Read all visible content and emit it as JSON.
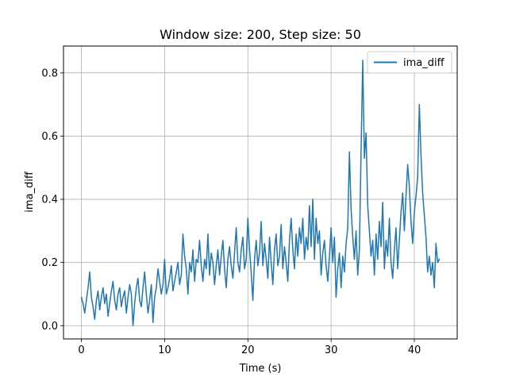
{
  "chart_data": {
    "type": "line",
    "title": "Window size: 200, Step size: 50",
    "xlabel": "Time (s)",
    "ylabel": "ima_diff",
    "xlim": [
      -2.15,
      45.15
    ],
    "ylim": [
      -0.042,
      0.885
    ],
    "xticks": [
      0,
      10,
      20,
      30,
      40
    ],
    "xtick_labels": [
      "0",
      "10",
      "20",
      "30",
      "40"
    ],
    "yticks": [
      0.0,
      0.2,
      0.4,
      0.6,
      0.8
    ],
    "ytick_labels": [
      "0.0",
      "0.2",
      "0.4",
      "0.6",
      "0.8"
    ],
    "grid": true,
    "legend_position": "upper right",
    "series": [
      {
        "name": "ima_diff",
        "color": "#1f77b4",
        "points": [
          [
            0.0,
            0.09
          ],
          [
            0.2,
            0.07
          ],
          [
            0.4,
            0.04
          ],
          [
            0.6,
            0.08
          ],
          [
            0.8,
            0.12
          ],
          [
            1.0,
            0.17
          ],
          [
            1.2,
            0.09
          ],
          [
            1.4,
            0.06
          ],
          [
            1.6,
            0.02
          ],
          [
            1.8,
            0.08
          ],
          [
            2.0,
            0.11
          ],
          [
            2.2,
            0.05
          ],
          [
            2.4,
            0.09
          ],
          [
            2.6,
            0.12
          ],
          [
            2.8,
            0.07
          ],
          [
            3.0,
            0.1
          ],
          [
            3.2,
            0.03
          ],
          [
            3.4,
            0.07
          ],
          [
            3.6,
            0.11
          ],
          [
            3.8,
            0.14
          ],
          [
            4.0,
            0.08
          ],
          [
            4.2,
            0.05
          ],
          [
            4.4,
            0.1
          ],
          [
            4.6,
            0.12
          ],
          [
            4.8,
            0.06
          ],
          [
            5.0,
            0.09
          ],
          [
            5.2,
            0.11
          ],
          [
            5.4,
            0.04
          ],
          [
            5.6,
            0.09
          ],
          [
            5.8,
            0.13
          ],
          [
            6.0,
            0.1
          ],
          [
            6.2,
            0.0
          ],
          [
            6.4,
            0.07
          ],
          [
            6.6,
            0.12
          ],
          [
            6.8,
            0.15
          ],
          [
            7.0,
            0.08
          ],
          [
            7.2,
            0.06
          ],
          [
            7.4,
            0.12
          ],
          [
            7.6,
            0.17
          ],
          [
            7.8,
            0.1
          ],
          [
            8.0,
            0.04
          ],
          [
            8.2,
            0.08
          ],
          [
            8.4,
            0.13
          ],
          [
            8.6,
            0.01
          ],
          [
            8.8,
            0.09
          ],
          [
            9.0,
            0.12
          ],
          [
            9.2,
            0.18
          ],
          [
            9.4,
            0.14
          ],
          [
            9.6,
            0.1
          ],
          [
            9.8,
            0.13
          ],
          [
            10.0,
            0.21
          ],
          [
            10.2,
            0.1
          ],
          [
            10.4,
            0.12
          ],
          [
            10.6,
            0.15
          ],
          [
            10.8,
            0.19
          ],
          [
            11.0,
            0.11
          ],
          [
            11.2,
            0.14
          ],
          [
            11.4,
            0.17
          ],
          [
            11.6,
            0.2
          ],
          [
            11.8,
            0.13
          ],
          [
            12.0,
            0.16
          ],
          [
            12.2,
            0.29
          ],
          [
            12.4,
            0.22
          ],
          [
            12.6,
            0.18
          ],
          [
            12.8,
            0.1
          ],
          [
            13.0,
            0.2
          ],
          [
            13.2,
            0.17
          ],
          [
            13.4,
            0.24
          ],
          [
            13.6,
            0.14
          ],
          [
            13.8,
            0.21
          ],
          [
            14.0,
            0.2
          ],
          [
            14.2,
            0.27
          ],
          [
            14.4,
            0.19
          ],
          [
            14.6,
            0.14
          ],
          [
            14.8,
            0.21
          ],
          [
            15.0,
            0.18
          ],
          [
            15.2,
            0.29
          ],
          [
            15.4,
            0.16
          ],
          [
            15.6,
            0.23
          ],
          [
            15.8,
            0.2
          ],
          [
            16.0,
            0.13
          ],
          [
            16.2,
            0.19
          ],
          [
            16.4,
            0.24
          ],
          [
            16.6,
            0.16
          ],
          [
            16.8,
            0.22
          ],
          [
            17.0,
            0.27
          ],
          [
            17.2,
            0.18
          ],
          [
            17.4,
            0.12
          ],
          [
            17.6,
            0.21
          ],
          [
            17.8,
            0.25
          ],
          [
            18.0,
            0.19
          ],
          [
            18.2,
            0.15
          ],
          [
            18.4,
            0.23
          ],
          [
            18.6,
            0.31
          ],
          [
            18.8,
            0.2
          ],
          [
            19.0,
            0.17
          ],
          [
            19.2,
            0.24
          ],
          [
            19.4,
            0.28
          ],
          [
            19.6,
            0.18
          ],
          [
            19.8,
            0.21
          ],
          [
            20.0,
            0.34
          ],
          [
            20.2,
            0.24
          ],
          [
            20.4,
            0.17
          ],
          [
            20.6,
            0.08
          ],
          [
            20.8,
            0.21
          ],
          [
            21.0,
            0.27
          ],
          [
            21.2,
            0.19
          ],
          [
            21.4,
            0.23
          ],
          [
            21.6,
            0.33
          ],
          [
            21.8,
            0.19
          ],
          [
            22.0,
            0.26
          ],
          [
            22.2,
            0.21
          ],
          [
            22.4,
            0.15
          ],
          [
            22.6,
            0.28
          ],
          [
            22.8,
            0.2
          ],
          [
            23.0,
            0.13
          ],
          [
            23.2,
            0.24
          ],
          [
            23.4,
            0.29
          ],
          [
            23.6,
            0.19
          ],
          [
            23.8,
            0.22
          ],
          [
            24.0,
            0.32
          ],
          [
            24.2,
            0.18
          ],
          [
            24.4,
            0.25
          ],
          [
            24.6,
            0.2
          ],
          [
            24.8,
            0.14
          ],
          [
            25.0,
            0.27
          ],
          [
            25.2,
            0.34
          ],
          [
            25.4,
            0.24
          ],
          [
            25.6,
            0.18
          ],
          [
            25.8,
            0.29
          ],
          [
            26.0,
            0.22
          ],
          [
            26.2,
            0.31
          ],
          [
            26.4,
            0.26
          ],
          [
            26.6,
            0.34
          ],
          [
            26.8,
            0.21
          ],
          [
            27.0,
            0.28
          ],
          [
            27.2,
            0.24
          ],
          [
            27.4,
            0.38
          ],
          [
            27.6,
            0.25
          ],
          [
            27.8,
            0.4
          ],
          [
            28.0,
            0.21
          ],
          [
            28.2,
            0.34
          ],
          [
            28.4,
            0.26
          ],
          [
            28.6,
            0.3
          ],
          [
            28.8,
            0.16
          ],
          [
            29.0,
            0.23
          ],
          [
            29.2,
            0.27
          ],
          [
            29.4,
            0.19
          ],
          [
            29.6,
            0.14
          ],
          [
            29.8,
            0.22
          ],
          [
            30.0,
            0.31
          ],
          [
            30.2,
            0.2
          ],
          [
            30.4,
            0.28
          ],
          [
            30.6,
            0.09
          ],
          [
            30.8,
            0.18
          ],
          [
            31.0,
            0.23
          ],
          [
            31.2,
            0.12
          ],
          [
            31.4,
            0.22
          ],
          [
            31.6,
            0.17
          ],
          [
            31.8,
            0.26
          ],
          [
            32.0,
            0.31
          ],
          [
            32.2,
            0.55
          ],
          [
            32.4,
            0.37
          ],
          [
            32.6,
            0.28
          ],
          [
            32.8,
            0.21
          ],
          [
            33.0,
            0.3
          ],
          [
            33.2,
            0.16
          ],
          [
            33.4,
            0.24
          ],
          [
            33.6,
            0.55
          ],
          [
            33.8,
            0.84
          ],
          [
            34.0,
            0.53
          ],
          [
            34.2,
            0.61
          ],
          [
            34.4,
            0.38
          ],
          [
            34.6,
            0.3
          ],
          [
            34.8,
            0.22
          ],
          [
            35.0,
            0.27
          ],
          [
            35.2,
            0.16
          ],
          [
            35.4,
            0.29
          ],
          [
            35.6,
            0.21
          ],
          [
            35.8,
            0.33
          ],
          [
            36.0,
            0.25
          ],
          [
            36.2,
            0.39
          ],
          [
            36.4,
            0.18
          ],
          [
            36.6,
            0.27
          ],
          [
            36.8,
            0.22
          ],
          [
            37.0,
            0.34
          ],
          [
            37.2,
            0.2
          ],
          [
            37.4,
            0.15
          ],
          [
            37.6,
            0.24
          ],
          [
            37.8,
            0.31
          ],
          [
            38.0,
            0.18
          ],
          [
            38.2,
            0.27
          ],
          [
            38.4,
            0.36
          ],
          [
            38.6,
            0.42
          ],
          [
            38.8,
            0.3
          ],
          [
            39.0,
            0.41
          ],
          [
            39.2,
            0.51
          ],
          [
            39.4,
            0.44
          ],
          [
            39.6,
            0.33
          ],
          [
            39.8,
            0.26
          ],
          [
            40.0,
            0.36
          ],
          [
            40.2,
            0.41
          ],
          [
            40.4,
            0.47
          ],
          [
            40.6,
            0.7
          ],
          [
            40.8,
            0.54
          ],
          [
            41.0,
            0.42
          ],
          [
            41.2,
            0.35
          ],
          [
            41.4,
            0.28
          ],
          [
            41.6,
            0.17
          ],
          [
            41.8,
            0.22
          ],
          [
            42.0,
            0.16
          ],
          [
            42.2,
            0.2
          ],
          [
            42.4,
            0.12
          ],
          [
            42.6,
            0.26
          ],
          [
            42.8,
            0.2
          ],
          [
            43.0,
            0.21
          ]
        ]
      }
    ]
  }
}
